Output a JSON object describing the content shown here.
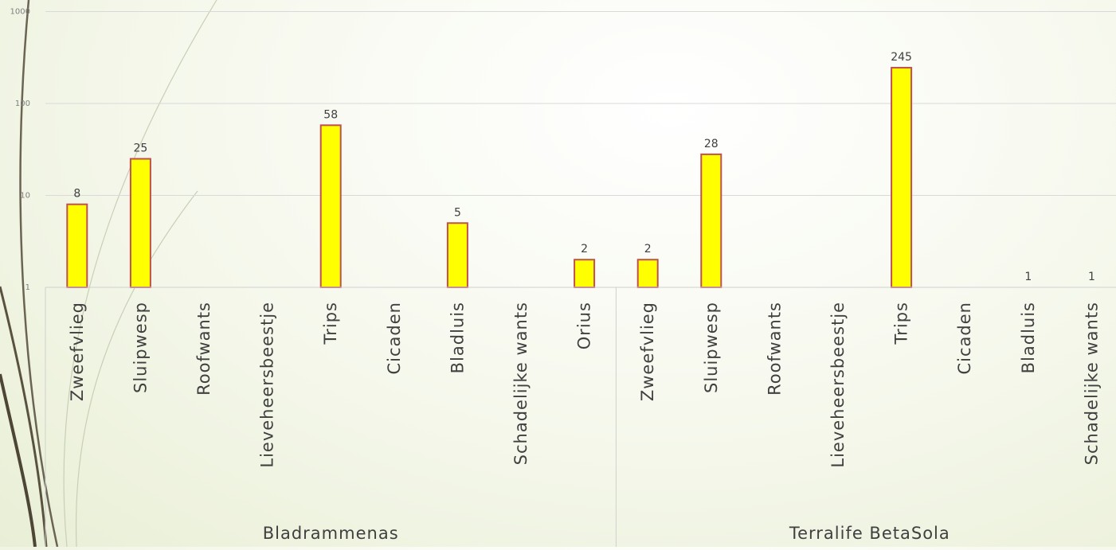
{
  "chart_data": {
    "type": "bar",
    "title": "",
    "xlabel": "",
    "ylabel": "",
    "y_scale": "log",
    "ylim": [
      1,
      1000
    ],
    "y_ticks": [
      1,
      10,
      100,
      1000
    ],
    "grid": true,
    "legend": "none",
    "bar_color": "#ffff00",
    "bar_border_color": "#c0504d",
    "groups": [
      {
        "name": "Bladrammenas",
        "categories": [
          "Zweefvlieg",
          "Sluipwesp",
          "Roofwants",
          "Lieveheersbeestje",
          "Trips",
          "Cicaden",
          "Bladluis",
          "Schadelijke wants",
          "Orius"
        ],
        "values": [
          8,
          25,
          null,
          null,
          58,
          null,
          5,
          null,
          2
        ]
      },
      {
        "name": "Terralife BetaSola",
        "categories": [
          "Zweefvlieg",
          "Sluipwesp",
          "Roofwants",
          "Lieveheersbeestje",
          "Trips",
          "Cicaden",
          "Bladluis",
          "Schadelijke wants"
        ],
        "values": [
          2,
          28,
          null,
          null,
          245,
          null,
          1,
          1
        ]
      }
    ]
  }
}
